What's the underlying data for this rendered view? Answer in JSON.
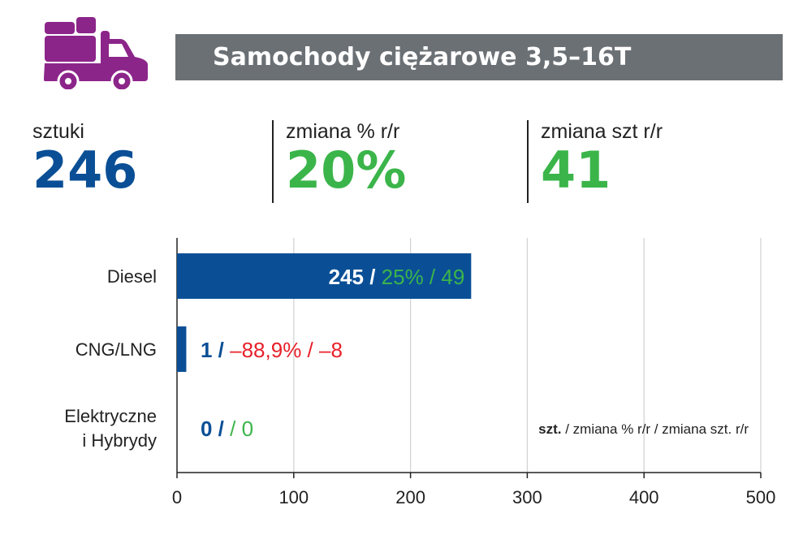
{
  "header": {
    "title": "Samochody ciężarowe 3,5–16T",
    "icon": "truck-icon"
  },
  "kpis": [
    {
      "label": "sztuki",
      "value": "246",
      "color": "#0a4f96"
    },
    {
      "label": "zmiana % r/r",
      "value": "20%",
      "color": "#3bb54a"
    },
    {
      "label": "zmiana szt r/r",
      "value": "41",
      "color": "#3bb54a"
    }
  ],
  "colors": {
    "blue": "#0a4f96",
    "green": "#3bb54a",
    "red": "#e8202a",
    "gray": "#6b7075",
    "purple": "#8c2589"
  },
  "chart_data": {
    "type": "bar",
    "orientation": "horizontal",
    "categories": [
      "Diesel",
      "CNG/LNG",
      "Elektryczne\ni Hybrydy"
    ],
    "values": [
      245,
      1,
      0
    ],
    "labels": [
      {
        "count": "245 /",
        "pct": "25% /",
        "diff": "49",
        "pct_color": "#3bb54a",
        "diff_color": "#3bb54a"
      },
      {
        "count": "1 /",
        "pct": "–88,9% /",
        "diff": "–8",
        "pct_color": "#e8202a",
        "diff_color": "#e8202a"
      },
      {
        "count": "0 /",
        "pct": "/",
        "diff": "0",
        "pct_color": "#3bb54a",
        "diff_color": "#3bb54a"
      }
    ],
    "xlim": [
      0,
      500
    ],
    "xticks": [
      0,
      100,
      200,
      300,
      400,
      500
    ],
    "grid": true,
    "legend_bold": "szt.",
    "legend_rest": " / zmiana % r/r / zmiana szt. r/r",
    "legend_position": "bottom-right"
  }
}
